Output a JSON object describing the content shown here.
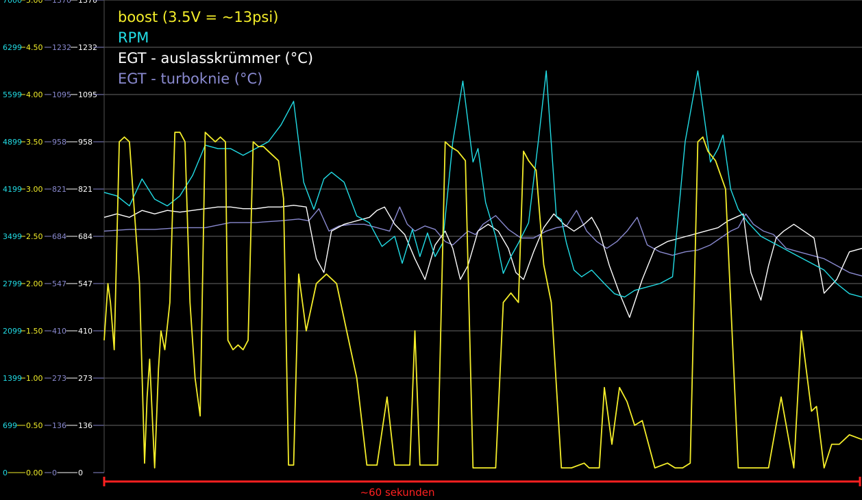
{
  "chart_data": {
    "type": "line",
    "title": "",
    "xlabel": "~60 sekunden",
    "xlim": [
      0,
      60
    ],
    "legend_position": "top-left",
    "grid": true,
    "axes": [
      {
        "name": "rpm",
        "color": "#22dde6",
        "ticks": [
          "0",
          "699",
          "1399",
          "2099",
          "2799",
          "3499",
          "4199",
          "4899",
          "5599",
          "6299",
          "7000"
        ]
      },
      {
        "name": "volt",
        "color": "#f2ee2a",
        "ticks": [
          "0.00",
          "0.50",
          "1.00",
          "1.50",
          "2.00",
          "2.50",
          "3.00",
          "3.50",
          "4.00",
          "4.50",
          "5.00"
        ]
      },
      {
        "name": "egt1",
        "color": "#8a8ad0",
        "ticks": [
          "0",
          "136",
          "273",
          "410",
          "547",
          "684",
          "821",
          "958",
          "1095",
          "1232",
          "1370"
        ]
      },
      {
        "name": "egt2",
        "color": "#ffffff",
        "ticks": [
          "0",
          "136",
          "273",
          "410",
          "547",
          "684",
          "821",
          "958",
          "1095",
          "1232",
          "1370"
        ]
      }
    ],
    "series": [
      {
        "name": "boost (3.5V = ~13psi)",
        "color": "#f5ee2a",
        "unit": "V",
        "ylim": [
          0,
          5
        ],
        "x": [
          0,
          0.3,
          0.5,
          0.8,
          1.2,
          1.6,
          2.0,
          2.8,
          3.2,
          3.4,
          3.6,
          4.0,
          4.3,
          4.5,
          4.8,
          5.2,
          5.6,
          6.0,
          6.4,
          6.8,
          7.2,
          7.6,
          8.0,
          8.4,
          8.8,
          9.2,
          9.6,
          9.8,
          10.2,
          10.6,
          11.0,
          11.4,
          11.8,
          12.2,
          12.6,
          13.0,
          13.4,
          13.8,
          14.2,
          14.6,
          15.0,
          15.4,
          16.0,
          16.8,
          17.6,
          18.4,
          19.2,
          20.0,
          20.8,
          21.6,
          22.4,
          23.0,
          23.8,
          24.2,
          24.6,
          25.0,
          25.6,
          26.4,
          27.0,
          27.4,
          28.0,
          28.6,
          29.2,
          30.2,
          31.0,
          31.6,
          32.2,
          32.8,
          33.2,
          33.6,
          34.2,
          34.8,
          35.4,
          36.2,
          37.0,
          38.0,
          38.4,
          38.8,
          39.2,
          39.6,
          40.2,
          40.8,
          41.4,
          42.0,
          42.6,
          43.6,
          44.6,
          45.2,
          45.8,
          46.4,
          47.0,
          47.4,
          47.8,
          48.4,
          49.2,
          50.2,
          51.0,
          51.8,
          52.6,
          53.6,
          54.6,
          55.2,
          56.0,
          56.4,
          57.0,
          57.6,
          58.2,
          59.0,
          60.0
        ],
        "values": [
          1.4,
          2.0,
          1.8,
          1.3,
          3.5,
          3.55,
          3.5,
          2.0,
          0.1,
          0.8,
          1.2,
          0.05,
          1.1,
          1.5,
          1.3,
          1.8,
          3.6,
          3.6,
          3.5,
          1.8,
          1.0,
          0.6,
          3.6,
          3.55,
          3.5,
          3.55,
          3.5,
          1.4,
          1.3,
          1.35,
          1.3,
          1.4,
          3.5,
          3.45,
          3.45,
          3.4,
          3.35,
          3.3,
          2.9,
          0.08,
          0.08,
          2.1,
          1.5,
          2.0,
          2.1,
          2.0,
          1.5,
          1.0,
          0.08,
          0.08,
          0.8,
          0.08,
          0.08,
          0.08,
          1.5,
          0.08,
          0.08,
          0.08,
          3.5,
          3.45,
          3.4,
          3.3,
          0.05,
          0.05,
          0.05,
          1.8,
          1.9,
          1.8,
          3.4,
          3.3,
          3.2,
          2.2,
          1.8,
          0.05,
          0.05,
          0.1,
          0.05,
          0.05,
          0.05,
          0.9,
          0.3,
          0.9,
          0.75,
          0.5,
          0.55,
          0.05,
          0.1,
          0.05,
          0.05,
          0.1,
          3.5,
          3.55,
          3.4,
          3.3,
          3.0,
          0.05,
          0.05,
          0.05,
          0.05,
          0.8,
          0.05,
          1.5,
          0.65,
          0.7,
          0.05,
          0.3,
          0.3,
          0.4,
          0.35
        ]
      },
      {
        "name": "RPM",
        "color": "#22dde6",
        "unit": "rpm",
        "ylim": [
          0,
          7000
        ],
        "x": [
          0,
          1.0,
          2.0,
          3.0,
          4.0,
          5.0,
          6.0,
          7.0,
          8.0,
          9.0,
          10.0,
          11.0,
          12.0,
          13.0,
          14.0,
          15.0,
          15.8,
          16.6,
          17.4,
          18.0,
          19.0,
          20.0,
          21.0,
          22.0,
          23.0,
          23.6,
          24.4,
          25.0,
          25.6,
          26.2,
          26.8,
          27.6,
          28.4,
          29.2,
          29.6,
          30.2,
          31.0,
          31.6,
          32.2,
          32.8,
          33.6,
          34.4,
          35.0,
          35.8,
          36.2,
          36.6,
          37.2,
          37.8,
          38.6,
          39.6,
          40.4,
          41.2,
          42.0,
          43.0,
          44.0,
          45.0,
          46.0,
          47.0,
          48.0,
          48.6,
          49.0,
          49.6,
          50.2,
          51.0,
          52.0,
          53.0,
          54.0,
          55.0,
          56.0,
          57.0,
          58.0,
          59.0,
          60.0
        ],
        "values": [
          4150,
          4100,
          3950,
          4350,
          4050,
          3950,
          4100,
          4400,
          4850,
          4800,
          4800,
          4700,
          4800,
          4900,
          5150,
          5500,
          4300,
          3900,
          4350,
          4450,
          4300,
          3800,
          3700,
          3350,
          3500,
          3100,
          3600,
          3200,
          3550,
          3200,
          3400,
          4900,
          5800,
          4600,
          4800,
          4000,
          3500,
          2950,
          3200,
          3400,
          3700,
          4950,
          5950,
          3800,
          3750,
          3400,
          3000,
          2900,
          3000,
          2800,
          2650,
          2600,
          2700,
          2750,
          2800,
          2900,
          4900,
          5950,
          4600,
          4800,
          5000,
          4200,
          3900,
          3700,
          3500,
          3400,
          3300,
          3200,
          3100,
          3000,
          2800,
          2650,
          2600
        ]
      },
      {
        "name": "EGT - auslasskrümmer (°C)",
        "color": "#ffffff",
        "unit": "°C",
        "ylim": [
          0,
          1370
        ],
        "x": [
          0,
          1.0,
          2.0,
          3.0,
          4.0,
          5.0,
          6.0,
          7.0,
          8.0,
          9.0,
          10.0,
          11.0,
          12.0,
          13.0,
          14.0,
          15.0,
          16.0,
          16.8,
          17.4,
          18.0,
          19.0,
          20.0,
          21.0,
          21.6,
          22.2,
          23.0,
          23.8,
          24.6,
          25.4,
          26.2,
          27.0,
          27.6,
          28.2,
          28.8,
          29.6,
          30.4,
          31.2,
          32.0,
          32.6,
          33.2,
          34.0,
          34.8,
          35.6,
          36.4,
          37.2,
          38.0,
          38.6,
          39.2,
          40.0,
          40.8,
          41.6,
          42.6,
          43.6,
          44.6,
          45.6,
          46.6,
          47.6,
          48.6,
          49.4,
          50.0,
          50.6,
          51.2,
          52.0,
          52.6,
          53.2,
          53.8,
          54.6,
          55.4,
          56.2,
          57.0,
          58.0,
          59.0,
          60.0
        ],
        "values": [
          740,
          750,
          740,
          760,
          750,
          760,
          755,
          760,
          765,
          770,
          770,
          765,
          765,
          770,
          770,
          775,
          770,
          620,
          580,
          700,
          720,
          730,
          740,
          760,
          770,
          720,
          690,
          620,
          560,
          660,
          700,
          650,
          560,
          600,
          700,
          720,
          700,
          650,
          580,
          560,
          640,
          710,
          750,
          720,
          700,
          720,
          740,
          700,
          600,
          520,
          450,
          560,
          650,
          670,
          680,
          690,
          700,
          710,
          730,
          740,
          750,
          580,
          500,
          600,
          680,
          700,
          720,
          700,
          680,
          520,
          560,
          640,
          650
        ]
      },
      {
        "name": "EGT - turboknie (°C)",
        "color": "#8a8ad0",
        "unit": "°C",
        "ylim": [
          0,
          1370
        ],
        "x": [
          0,
          2.0,
          4.0,
          6.0,
          8.0,
          10.0,
          12.0,
          14.0,
          15.4,
          16.2,
          17.0,
          17.8,
          18.6,
          19.6,
          20.6,
          21.6,
          22.6,
          23.4,
          24.0,
          24.6,
          25.4,
          26.2,
          27.0,
          27.6,
          28.2,
          28.8,
          29.4,
          30.0,
          31.0,
          32.0,
          33.0,
          34.0,
          35.0,
          35.8,
          36.6,
          37.4,
          38.2,
          39.0,
          39.8,
          40.6,
          41.4,
          42.2,
          43.0,
          44.0,
          45.0,
          46.0,
          47.0,
          48.0,
          48.8,
          49.6,
          50.2,
          50.8,
          51.4,
          52.2,
          53.0,
          54.0,
          55.0,
          56.0,
          57.0,
          58.0,
          59.0,
          60.0
        ],
        "values": [
          700,
          705,
          705,
          710,
          710,
          725,
          725,
          730,
          735,
          730,
          765,
          700,
          715,
          720,
          720,
          710,
          700,
          770,
          720,
          700,
          715,
          705,
          670,
          660,
          680,
          700,
          690,
          720,
          745,
          705,
          680,
          680,
          700,
          710,
          715,
          760,
          700,
          670,
          650,
          670,
          700,
          740,
          660,
          640,
          630,
          640,
          645,
          660,
          680,
          700,
          710,
          750,
          720,
          700,
          690,
          650,
          640,
          630,
          620,
          600,
          580,
          570
        ]
      }
    ]
  }
}
